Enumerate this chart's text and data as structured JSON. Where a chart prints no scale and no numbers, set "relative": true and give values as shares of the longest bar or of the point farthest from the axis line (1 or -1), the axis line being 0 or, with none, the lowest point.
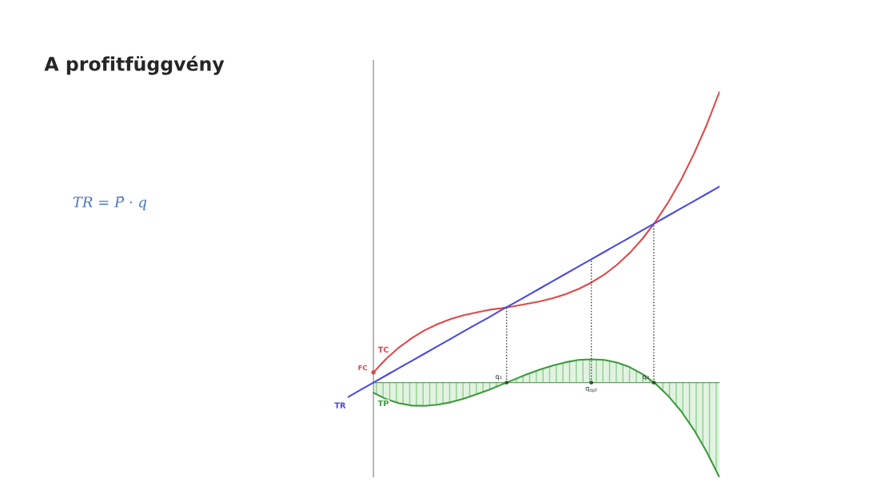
{
  "chart_data": {
    "type": "line",
    "title": "A profitfüggvény",
    "relative": true,
    "ref_lines": [
      {
        "axis": "y",
        "value": 0,
        "color": "#6a9a6a"
      }
    ],
    "categories": [
      null,
      null,
      null,
      null,
      null,
      null,
      null,
      null,
      null,
      null,
      null,
      null,
      null,
      null,
      null,
      null,
      null,
      null,
      null,
      null,
      null,
      null,
      null,
      null,
      null,
      null,
      null,
      null,
      null,
      null
    ],
    "series": [
      {
        "name": "TC",
        "color": "#e04848",
        "values": [
          null,
          null,
          0.035,
          0.082,
          0.121,
          0.153,
          0.18,
          0.201,
          0.218,
          0.231,
          0.241,
          0.25,
          0.256,
          0.263,
          0.271,
          0.279,
          0.29,
          0.304,
          0.322,
          0.344,
          0.371,
          0.405,
          0.446,
          0.495,
          0.553,
          0.62,
          0.697,
          0.786,
          0.886,
          1.0
        ]
      },
      {
        "name": "TR",
        "color": "#4a4ae0",
        "values": [
          -0.05,
          -0.025,
          0,
          0.025,
          0.05,
          0.075,
          0.1,
          0.125,
          0.15,
          0.175,
          0.2,
          0.224,
          0.25,
          0.274,
          0.299,
          0.324,
          0.349,
          0.374,
          0.399,
          0.424,
          0.449,
          0.474,
          0.499,
          0.524,
          0.549,
          0.574,
          0.599,
          0.624,
          0.649,
          0.674
        ]
      },
      {
        "name": "TP",
        "type": "area",
        "color": "#3c9a3c",
        "values": [
          null,
          null,
          -0.035,
          -0.057,
          -0.071,
          -0.079,
          -0.08,
          -0.076,
          -0.068,
          -0.056,
          -0.041,
          -0.025,
          -0.007,
          0.011,
          0.029,
          0.045,
          0.059,
          0.07,
          0.078,
          0.08,
          0.078,
          0.069,
          0.053,
          0.029,
          -0.004,
          -0.046,
          -0.098,
          -0.162,
          -0.238,
          -0.326
        ]
      }
    ],
    "annotations": [
      "TR = P̄ · q",
      "FC",
      "q₁",
      "q$_{opt}$",
      "q₂"
    ]
  }
}
